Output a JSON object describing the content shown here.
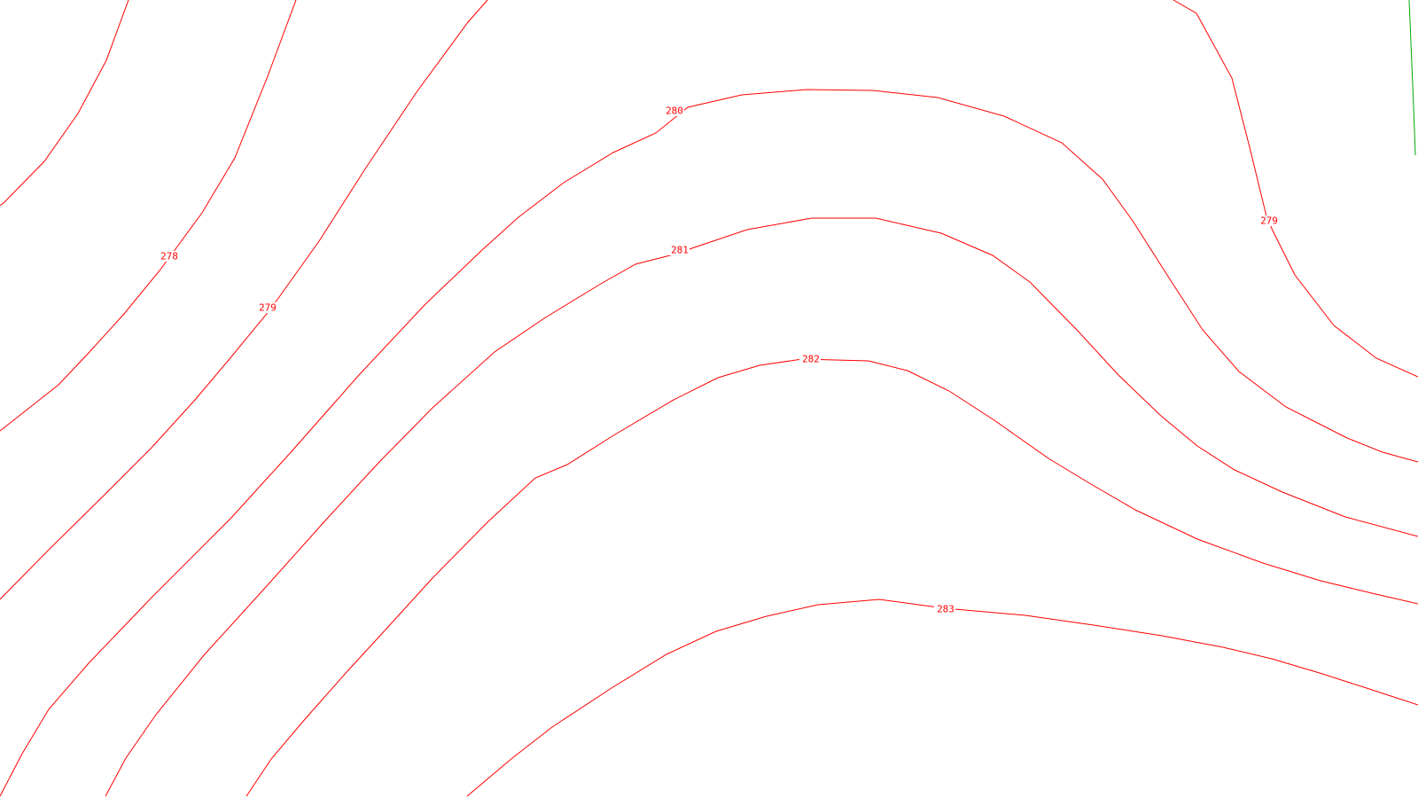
{
  "map": {
    "background_color": "#ffffff",
    "contour_color": "#ff0000",
    "edge_stroke_color": "#00aa00",
    "contours": [
      {
        "id": "c278a",
        "label": ""
      },
      {
        "id": "c278b",
        "label": "278"
      },
      {
        "id": "c278c",
        "label": ""
      },
      {
        "id": "c279",
        "label": "279"
      },
      {
        "id": "c280",
        "label": "280"
      },
      {
        "id": "c281",
        "label": "281"
      },
      {
        "id": "c282",
        "label": "282"
      },
      {
        "id": "c283",
        "label": "283"
      },
      {
        "id": "c279-right",
        "label": "279"
      }
    ]
  }
}
